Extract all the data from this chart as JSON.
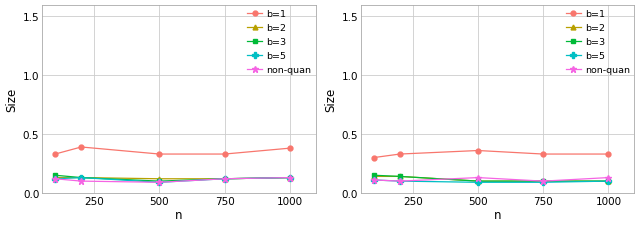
{
  "x": [
    100,
    200,
    500,
    750,
    1000
  ],
  "plot1": {
    "b1": [
      0.33,
      0.39,
      0.33,
      0.33,
      0.38
    ],
    "b2": [
      0.13,
      0.13,
      0.12,
      0.12,
      0.13
    ],
    "b3": [
      0.15,
      0.13,
      0.1,
      0.12,
      0.13
    ],
    "b5": [
      0.12,
      0.13,
      0.09,
      0.12,
      0.13
    ],
    "nonquan": [
      0.12,
      0.1,
      0.09,
      0.12,
      0.13
    ]
  },
  "plot2": {
    "b1": [
      0.3,
      0.33,
      0.36,
      0.33,
      0.33
    ],
    "b2": [
      0.14,
      0.14,
      0.1,
      0.1,
      0.1
    ],
    "b3": [
      0.15,
      0.14,
      0.1,
      0.1,
      0.1
    ],
    "b5": [
      0.11,
      0.1,
      0.09,
      0.09,
      0.1
    ],
    "nonquan": [
      0.11,
      0.1,
      0.13,
      0.1,
      0.13
    ]
  },
  "colors": {
    "b1": "#F8766D",
    "b2": "#B8A000",
    "b3": "#00BA38",
    "b5": "#00BFC4",
    "nonquan": "#F564E3"
  },
  "markers": {
    "b1": "o",
    "b2": "^",
    "b3": "s",
    "b5": "P",
    "nonquan": "*"
  },
  "marker_sizes": {
    "b1": 3.5,
    "b2": 3.5,
    "b3": 3.5,
    "b5": 4.5,
    "nonquan": 5.0
  },
  "labels": {
    "b1": "b=1",
    "b2": "b=2",
    "b3": "b=3",
    "b5": "b=5",
    "nonquan": "non-quan"
  },
  "xlabel": "n",
  "ylabel": "Size",
  "ylim": [
    0.0,
    1.6
  ],
  "yticks": [
    0.0,
    0.5,
    1.0,
    1.5
  ],
  "xticks": [
    250,
    500,
    750,
    1000
  ],
  "xlim": [
    50,
    1100
  ],
  "bg_color": "#FFFFFF",
  "grid_color": "#CCCCCC",
  "border_color": "#AAAAAA",
  "linewidth": 0.9,
  "tick_labelsize": 7.5,
  "axis_labelsize": 8.5
}
